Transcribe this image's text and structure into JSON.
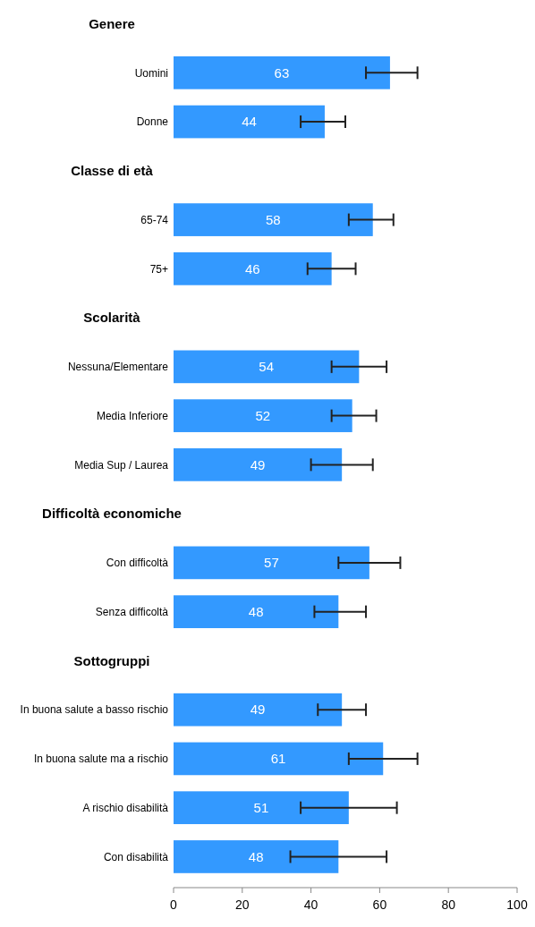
{
  "chart_data": {
    "type": "bar",
    "orientation": "horizontal",
    "categories": [
      null,
      "Uomini",
      "Donne",
      null,
      "65-74",
      "75+",
      null,
      "Nessuna/Elementare",
      "Media Inferiore",
      "Media Sup / Laurea",
      null,
      "Con difficoltà",
      "Senza difficoltà",
      null,
      "In buona salute a basso rischio",
      "In buona salute ma a rischio",
      "A rischio disabilità",
      "Con disabilità"
    ],
    "annotations": [
      "Genere",
      "Classe di età",
      "Scolarità",
      "Difficoltà economiche",
      "Sottogruppi"
    ],
    "values": [
      null,
      63,
      44,
      null,
      58,
      46,
      null,
      54,
      52,
      49,
      null,
      57,
      48,
      null,
      49,
      61,
      51,
      48
    ],
    "errors": [
      null,
      [
        56,
        71
      ],
      [
        37,
        50
      ],
      null,
      [
        51,
        64
      ],
      [
        39,
        53
      ],
      null,
      [
        46,
        62
      ],
      [
        46,
        59
      ],
      [
        40,
        58
      ],
      null,
      [
        48,
        66
      ],
      [
        41,
        56
      ],
      null,
      [
        42,
        56
      ],
      [
        51,
        71
      ],
      [
        37,
        65
      ],
      [
        34,
        62
      ]
    ],
    "color": "#3399ff",
    "data_labels": true,
    "xlim": [
      0,
      100
    ],
    "xticks": [
      0,
      20,
      40,
      60,
      80,
      100
    ],
    "grid": false
  }
}
